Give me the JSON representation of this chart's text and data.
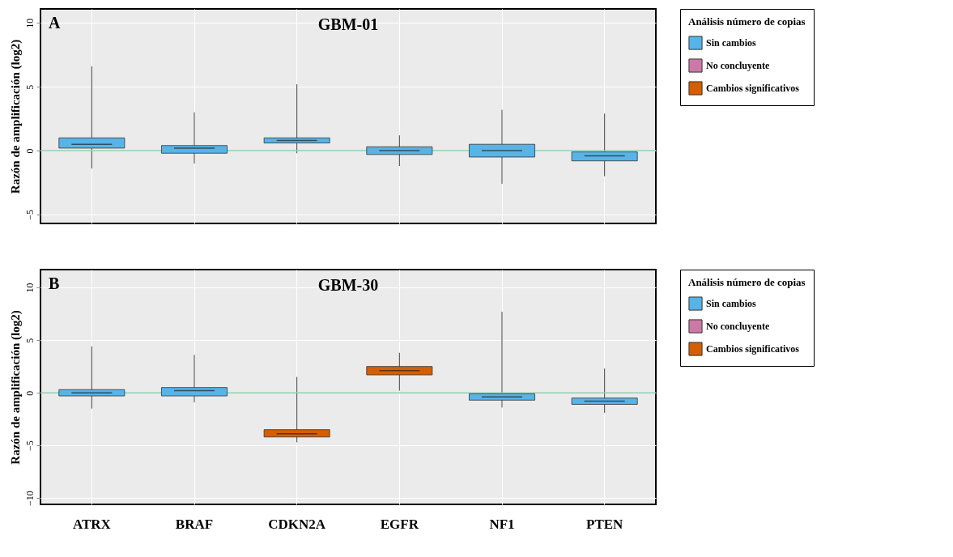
{
  "chart_data": [
    {
      "type": "box",
      "title": "GBM-01",
      "ylabel": "Razón de amplificación (log2)",
      "legend_title": "Análisis número de copias",
      "legend": "right",
      "grid": true,
      "annotations": [
        "A"
      ],
      "categories": [
        null,
        null,
        null,
        null,
        null,
        null
      ],
      "ylim": [
        -5.7,
        11.1
      ],
      "yticks": [
        -5,
        0,
        5,
        10
      ],
      "ref_lines": [
        {
          "axis": "y",
          "value": 0,
          "color": "#8fd1b0"
        }
      ],
      "series": [
        {
          "name": "Sin cambios",
          "color": "#56b4e9",
          "boxes": [
            {
              "low": -1.4,
              "q1": 0.2,
              "median": 0.5,
              "q3": 1.0,
              "high": 6.6
            },
            {
              "low": -1.0,
              "q1": -0.2,
              "median": 0.2,
              "q3": 0.4,
              "high": 3.0
            },
            {
              "low": -0.2,
              "q1": 0.6,
              "median": 0.8,
              "q3": 1.0,
              "high": 5.2
            },
            {
              "low": -1.2,
              "q1": -0.3,
              "median": 0,
              "q3": 0.3,
              "high": 1.2
            },
            {
              "low": -2.6,
              "q1": -0.5,
              "median": 0,
              "q3": 0.5,
              "high": 3.2
            },
            {
              "low": -2.0,
              "q1": -0.8,
              "median": -0.4,
              "q3": -0.1,
              "high": 2.9
            }
          ]
        },
        {
          "name": "No concluyente",
          "color": "#cc79a7",
          "boxes": [
            null,
            null,
            null,
            null,
            null,
            null
          ]
        },
        {
          "name": "Cambios significativos",
          "color": "#d55e00",
          "boxes": [
            null,
            null,
            null,
            null,
            null,
            null
          ]
        }
      ]
    },
    {
      "type": "box",
      "title": "GBM-30",
      "ylabel": "Razón de amplificación (log2)",
      "legend_title": "Análisis número de copias",
      "legend": "right",
      "grid": true,
      "annotations": [
        "B"
      ],
      "categories": [
        "ATRX",
        "BRAF",
        "CDKN2A",
        "EGFR",
        "NF1",
        "PTEN"
      ],
      "ylim": [
        -10.6,
        11.7
      ],
      "yticks": [
        -10,
        -5,
        0,
        5,
        10
      ],
      "ref_lines": [
        {
          "axis": "y",
          "value": 0,
          "color": "#8fd1b0"
        }
      ],
      "series": [
        {
          "name": "Sin cambios",
          "color": "#56b4e9",
          "boxes": [
            {
              "low": -1.5,
              "q1": -0.3,
              "median": 0,
              "q3": 0.3,
              "high": 4.4
            },
            {
              "low": -0.9,
              "q1": -0.3,
              "median": 0.2,
              "q3": 0.5,
              "high": 3.6
            },
            null,
            null,
            {
              "low": -1.4,
              "q1": -0.7,
              "median": -0.4,
              "q3": -0.1,
              "high": 7.7
            },
            {
              "low": -1.9,
              "q1": -1.1,
              "median": -0.8,
              "q3": -0.5,
              "high": 2.3
            }
          ]
        },
        {
          "name": "No concluyente",
          "color": "#cc79a7",
          "boxes": [
            null,
            null,
            null,
            null,
            null,
            null
          ]
        },
        {
          "name": "Cambios significativos",
          "color": "#d55e00",
          "boxes": [
            null,
            null,
            {
              "low": -4.7,
              "q1": -4.2,
              "median": -3.9,
              "q3": -3.5,
              "high": 1.5
            },
            {
              "low": 0.2,
              "q1": 1.7,
              "median": 2.1,
              "q3": 2.5,
              "high": 3.8
            },
            null,
            null
          ]
        }
      ]
    }
  ]
}
